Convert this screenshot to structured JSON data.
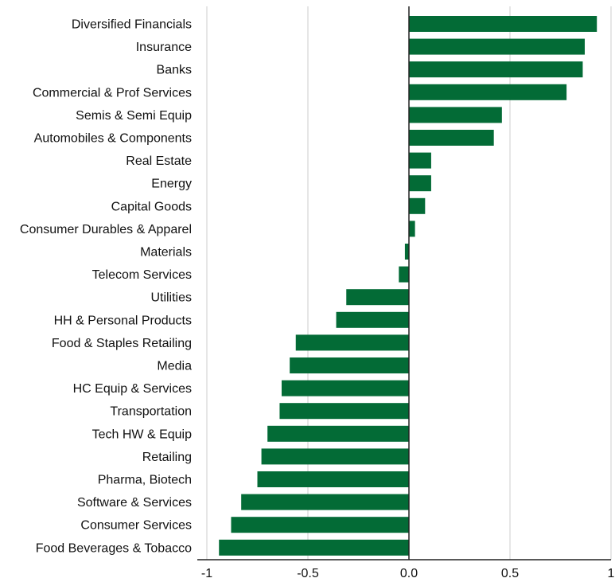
{
  "chart_data": {
    "type": "bar",
    "orientation": "horizontal",
    "categories": [
      "Diversified Financials",
      "Insurance",
      "Banks",
      "Commercial & Prof Services",
      "Semis & Semi Equip",
      "Automobiles & Components",
      "Real Estate",
      "Energy",
      "Capital Goods",
      "Consumer Durables & Apparel",
      "Materials",
      "Telecom Services",
      "Utilities",
      "HH & Personal Products",
      "Food & Staples Retailing",
      "Media",
      "HC Equip & Services",
      "Transportation",
      "Tech HW & Equip",
      "Retailing",
      "Pharma, Biotech",
      "Software & Services",
      "Consumer Services",
      "Food Beverages & Tobacco"
    ],
    "values": [
      0.93,
      0.87,
      0.86,
      0.78,
      0.46,
      0.42,
      0.11,
      0.11,
      0.08,
      0.03,
      -0.02,
      -0.05,
      -0.31,
      -0.36,
      -0.56,
      -0.59,
      -0.63,
      -0.64,
      -0.7,
      -0.73,
      -0.75,
      -0.83,
      -0.88,
      -0.94
    ],
    "title": "",
    "xlabel": "",
    "ylabel": "",
    "xlim": [
      -1,
      1
    ],
    "xticks": [
      -1,
      -0.5,
      0,
      0.5,
      1
    ],
    "xtick_labels": [
      "-1",
      "-0.5",
      "0.0",
      "0.5",
      "1"
    ],
    "grid": "vertical",
    "legend": "none",
    "colors": {
      "bar": "#036B36",
      "grid": "#DDDDDD",
      "axis": "#222222"
    }
  }
}
